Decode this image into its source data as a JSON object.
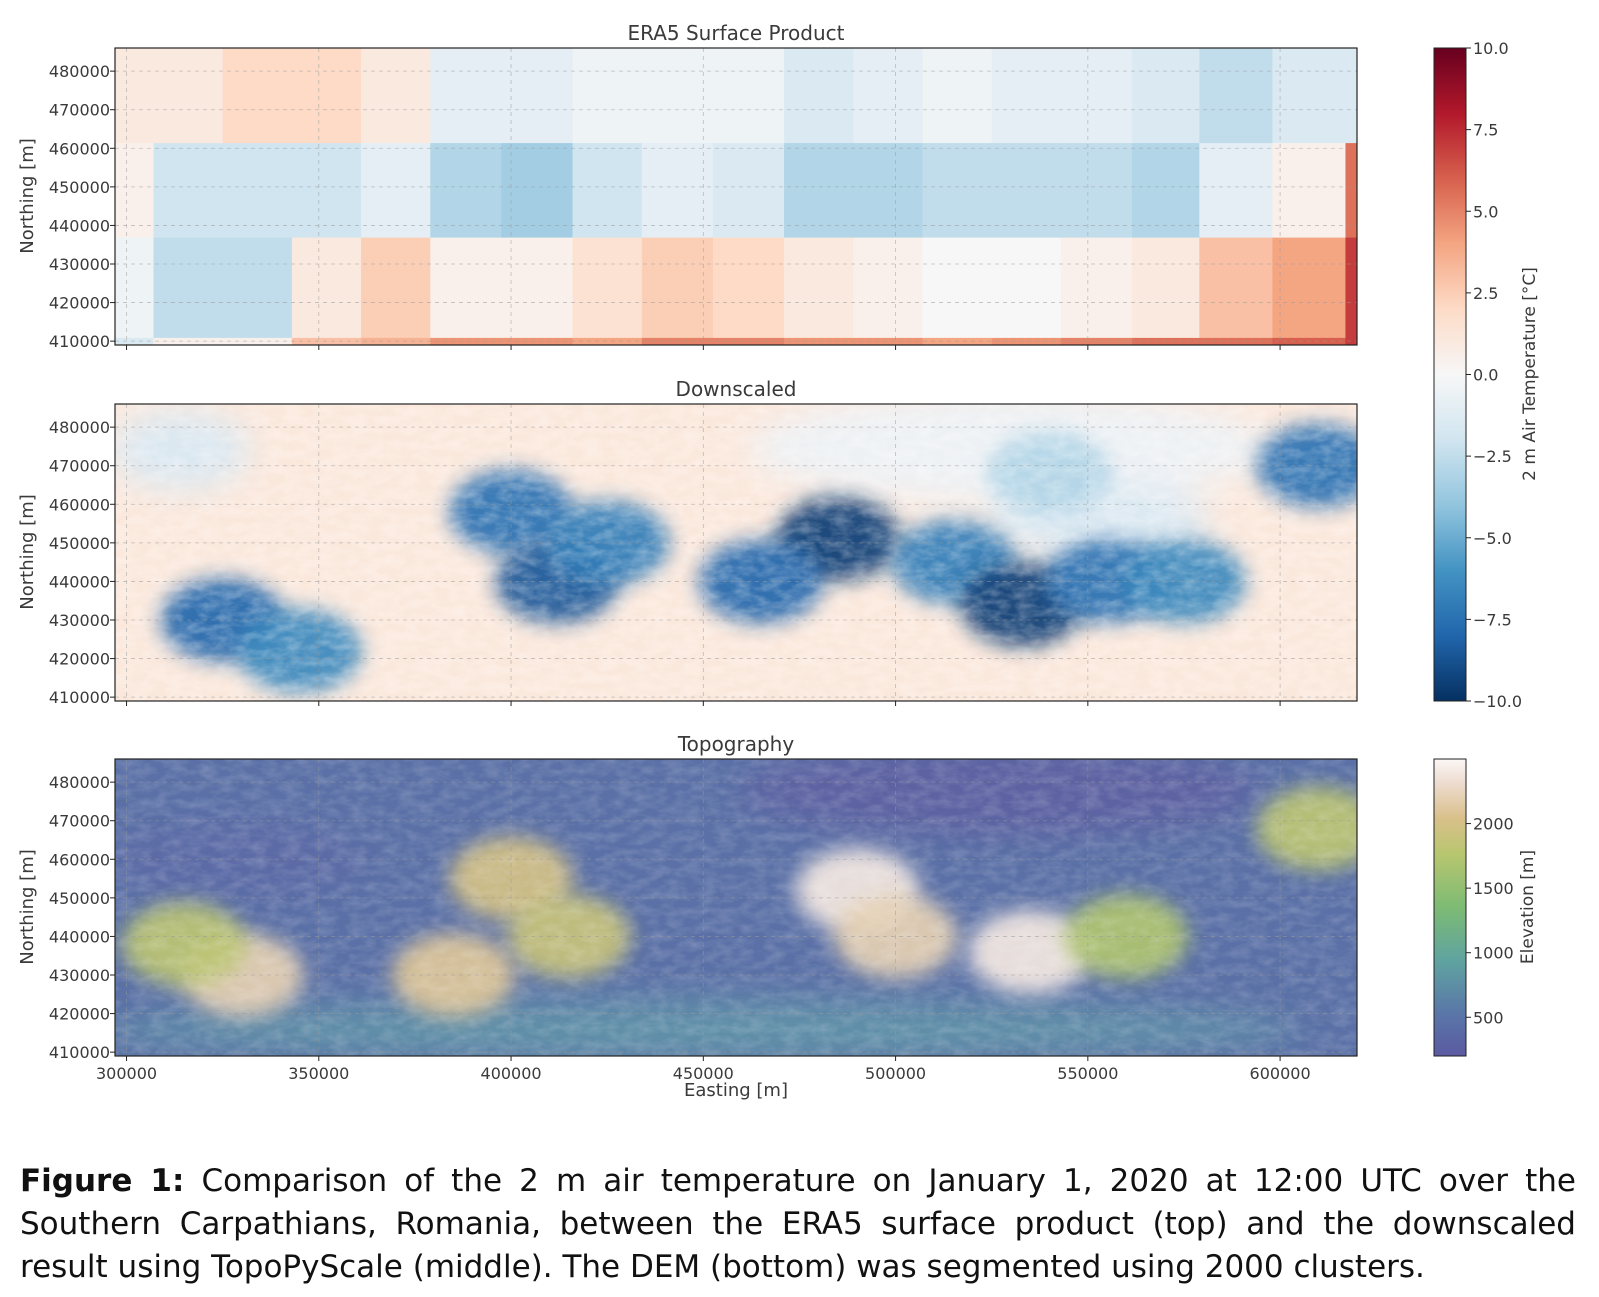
{
  "chart_data": [
    {
      "type": "heatmap",
      "title": "ERA5 Surface Product",
      "xlabel": "",
      "ylabel": "Northing [m]",
      "xlim": [
        297000,
        620000
      ],
      "ylim": [
        409000,
        486000
      ],
      "x_ticks": [
        300000,
        350000,
        400000,
        450000,
        500000,
        550000,
        600000
      ],
      "x_tick_labels": [
        "",
        "",
        "",
        "",
        "",
        "",
        ""
      ],
      "y_ticks": [
        410000,
        420000,
        430000,
        440000,
        450000,
        460000,
        470000,
        480000
      ],
      "y_tick_labels": [
        "410000",
        "420000",
        "430000",
        "440000",
        "450000",
        "460000",
        "470000",
        "480000"
      ],
      "grid": true,
      "cell_x_edges": [
        297000,
        307000,
        325000,
        343000,
        361000,
        379000,
        397500,
        416000,
        434000,
        452500,
        471000,
        489000,
        507000,
        525000,
        543000,
        561500,
        579000,
        598000,
        617000,
        620000
      ],
      "cell_y_edges": [
        409000,
        411000,
        437000,
        461500,
        486000
      ],
      "values": [
        [
          -1.5,
          0.5,
          0.5,
          3.0,
          3.5,
          4.5,
          4.5,
          4.0,
          5.0,
          5.0,
          4.5,
          4.5,
          4.0,
          4.5,
          5.0,
          5.5,
          5.5,
          6.0,
          7.0
        ],
        [
          -0.5,
          -2.5,
          -2.5,
          1.0,
          2.5,
          0.5,
          0.5,
          1.5,
          2.5,
          2.0,
          1.0,
          0.5,
          0.0,
          0.0,
          0.5,
          1.0,
          3.0,
          4.0,
          7.0
        ],
        [
          0.5,
          -2.0,
          -2.0,
          -2.0,
          -1.0,
          -3.0,
          -3.5,
          -2.0,
          -1.0,
          -1.5,
          -3.0,
          -3.0,
          -2.5,
          -2.5,
          -2.5,
          -3.0,
          -1.0,
          0.5,
          5.5
        ],
        [
          1.0,
          1.0,
          2.0,
          2.0,
          1.0,
          -1.0,
          -1.0,
          -0.5,
          -0.5,
          -0.5,
          -1.5,
          -1.0,
          -0.5,
          -1.0,
          -1.0,
          -1.5,
          -2.5,
          -1.5,
          -1.5
        ]
      ],
      "colorbar": {
        "label": "2 m Air Temperature [°C]",
        "range": [
          -10,
          10
        ],
        "ticks": [
          "10.0",
          "7.5",
          "5.0",
          "2.5",
          "0.0",
          "−2.5",
          "−5.0",
          "−7.5",
          "−10.0"
        ],
        "colormap": "RdBu_r"
      }
    },
    {
      "type": "heatmap",
      "title": "Downscaled",
      "xlabel": "",
      "ylabel": "Northing [m]",
      "xlim": [
        297000,
        620000
      ],
      "ylim": [
        409000,
        486000
      ],
      "x_ticks": [
        300000,
        350000,
        400000,
        450000,
        500000,
        550000,
        600000
      ],
      "x_tick_labels": [
        "",
        "",
        "",
        "",
        "",
        "",
        ""
      ],
      "y_ticks": [
        410000,
        420000,
        430000,
        440000,
        450000,
        460000,
        470000,
        480000
      ],
      "y_tick_labels": [
        "410000",
        "420000",
        "430000",
        "440000",
        "450000",
        "460000",
        "470000",
        "480000"
      ],
      "grid": true,
      "colorbar": {
        "label": "2 m Air Temperature [°C]",
        "range": [
          -10,
          10
        ],
        "colormap": "RdBu_r"
      },
      "features": [
        {
          "x": 325000,
          "y": 430000,
          "value": -8.0
        },
        {
          "x": 345000,
          "y": 422000,
          "value": -6.5
        },
        {
          "x": 400000,
          "y": 458000,
          "value": -7.5
        },
        {
          "x": 412000,
          "y": 440000,
          "value": -8.5
        },
        {
          "x": 425000,
          "y": 450000,
          "value": -7.0
        },
        {
          "x": 485000,
          "y": 451000,
          "value": -9.5
        },
        {
          "x": 465000,
          "y": 440000,
          "value": -8.0
        },
        {
          "x": 515000,
          "y": 445000,
          "value": -7.0
        },
        {
          "x": 533000,
          "y": 434000,
          "value": -9.5
        },
        {
          "x": 555000,
          "y": 440000,
          "value": -7.5
        },
        {
          "x": 575000,
          "y": 440000,
          "value": -6.5
        },
        {
          "x": 610000,
          "y": 470000,
          "value": -7.5
        },
        {
          "x": 540000,
          "y": 468000,
          "value": -3.0
        }
      ]
    },
    {
      "type": "heatmap",
      "title": "Topography",
      "xlabel": "Easting [m]",
      "ylabel": "Northing [m]",
      "xlim": [
        297000,
        620000
      ],
      "ylim": [
        409000,
        486000
      ],
      "x_ticks": [
        300000,
        350000,
        400000,
        450000,
        500000,
        550000,
        600000
      ],
      "x_tick_labels": [
        "300000",
        "350000",
        "400000",
        "450000",
        "500000",
        "550000",
        "600000"
      ],
      "y_ticks": [
        410000,
        420000,
        430000,
        440000,
        450000,
        460000,
        470000,
        480000
      ],
      "y_tick_labels": [
        "410000",
        "420000",
        "430000",
        "440000",
        "450000",
        "460000",
        "470000",
        "480000"
      ],
      "grid": true,
      "colorbar": {
        "label": "Elevation [m]",
        "range": [
          200,
          2500
        ],
        "ticks": [
          "2000",
          "1500",
          "1000",
          "500"
        ],
        "tick_values": [
          2000,
          1500,
          1000,
          500
        ],
        "colormap": "gist_earth-like"
      },
      "features": [
        {
          "x": 330000,
          "y": 430000,
          "value": 2200
        },
        {
          "x": 315000,
          "y": 438000,
          "value": 1800
        },
        {
          "x": 400000,
          "y": 455000,
          "value": 2000
        },
        {
          "x": 415000,
          "y": 440000,
          "value": 1900
        },
        {
          "x": 385000,
          "y": 430000,
          "value": 2100
        },
        {
          "x": 490000,
          "y": 452000,
          "value": 2400
        },
        {
          "x": 500000,
          "y": 440000,
          "value": 2200
        },
        {
          "x": 535000,
          "y": 436000,
          "value": 2400
        },
        {
          "x": 560000,
          "y": 440000,
          "value": 1700
        },
        {
          "x": 610000,
          "y": 468000,
          "value": 1800
        }
      ]
    }
  ],
  "caption": {
    "label": "Figure 1:",
    "text": " Comparison of the 2 m air temperature on January 1, 2020 at 12:00 UTC over the Southern Carpathians, Romania, between the ERA5 surface product (top) and the downscaled result using TopoPyScale (middle). The DEM (bottom) was segmented using 2000 clusters."
  }
}
